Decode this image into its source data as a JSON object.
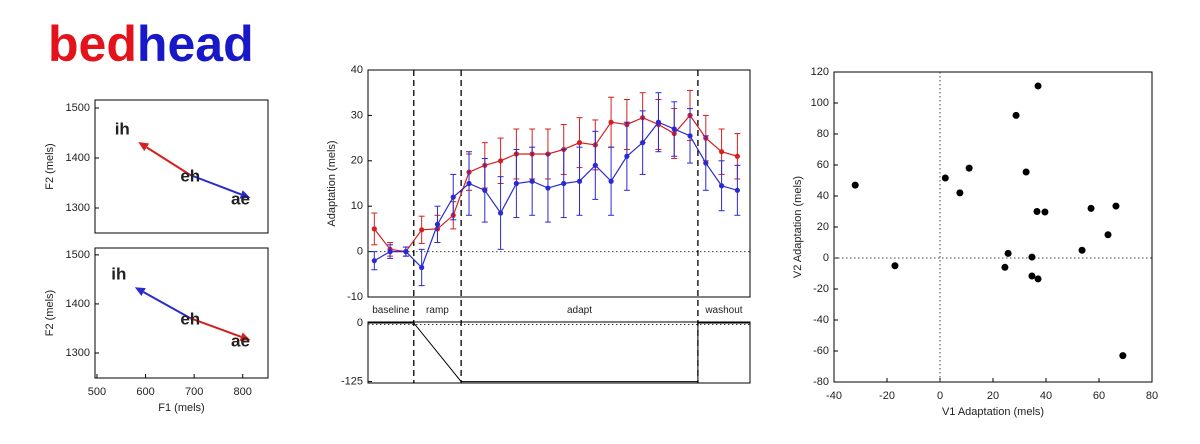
{
  "heading": {
    "parts": [
      {
        "text": "bed",
        "color": "#e3121b"
      },
      {
        "text": "head",
        "color": "#1818c8"
      }
    ]
  },
  "chart_data": [
    {
      "type": "vowel",
      "ylabel": "F2 (mels)",
      "labels": [
        "ih",
        "eh",
        "ae"
      ],
      "x": [
        585,
        692,
        816
      ],
      "y": [
        1432,
        1366,
        1320
      ],
      "arrows": [
        {
          "from": 1,
          "to": 0,
          "color": "#d42020"
        },
        {
          "from": 1,
          "to": 2,
          "color": "#2a2ad0"
        }
      ],
      "xlim": [
        496,
        852
      ],
      "ylim": [
        1250,
        1516
      ],
      "yticks": [
        1300,
        1400,
        1500
      ]
    },
    {
      "type": "vowel",
      "xlabel": "F1 (mels)",
      "ylabel": "F2 (mels)",
      "labels": [
        "ih",
        "eh",
        "ae"
      ],
      "x": [
        578,
        692,
        816
      ],
      "y": [
        1434,
        1371,
        1326
      ],
      "arrows": [
        {
          "from": 1,
          "to": 0,
          "color": "#2a2ad0"
        },
        {
          "from": 1,
          "to": 2,
          "color": "#d42020"
        }
      ],
      "xlim": [
        496,
        852
      ],
      "xticks": [
        500,
        600,
        700,
        800
      ],
      "ylim": [
        1249,
        1514
      ],
      "yticks": [
        1300,
        1400,
        1500
      ]
    },
    {
      "type": "errorline",
      "ylabel": "Adaptation (mels)",
      "x": [
        1,
        2,
        3,
        4,
        5,
        6,
        7,
        8,
        9,
        10,
        11,
        12,
        13,
        14,
        15,
        16,
        17,
        18,
        19,
        20,
        21,
        22,
        23,
        24
      ],
      "series": [
        {
          "color": "#d42020",
          "values": [
            5,
            0.5,
            0,
            4.8,
            5,
            8,
            17.5,
            19,
            20,
            21.5,
            21.5,
            21.5,
            22.5,
            24,
            23.5,
            28.5,
            28,
            29.5,
            28,
            26,
            30,
            25,
            22,
            21
          ],
          "errors": [
            3.5,
            1.5,
            1,
            3,
            3,
            3,
            4,
            5,
            5,
            5.5,
            5.5,
            5.5,
            5.5,
            5.5,
            5.5,
            5.5,
            5.5,
            5.5,
            5.5,
            5.5,
            5.5,
            5,
            5,
            5
          ]
        },
        {
          "color": "#2a2ad0",
          "values": [
            -2,
            0,
            0,
            -3.5,
            6,
            12,
            15,
            13.5,
            8.5,
            15,
            15.5,
            14,
            15,
            15.5,
            19,
            15.5,
            21,
            24,
            28.5,
            27,
            25.5,
            19.5,
            14.5,
            13.5
          ],
          "errors": [
            2,
            1.5,
            1,
            4,
            4,
            5,
            7,
            7,
            8,
            7.5,
            7.5,
            7.5,
            7.5,
            7.5,
            7.5,
            7.5,
            7.5,
            7,
            6.5,
            6,
            6,
            6,
            5.5,
            5.5
          ]
        }
      ],
      "xlim": [
        0.6,
        24.8
      ],
      "ylim": [
        -10,
        40
      ],
      "yticks": [
        -10,
        0,
        10,
        20,
        30,
        40
      ],
      "zero_line": true,
      "phases": [
        "baseline",
        "ramp",
        "adapt",
        "washout"
      ],
      "phase_boundaries": [
        3.5,
        6.5,
        21.5
      ],
      "perturbation": {
        "x": [
          0.6,
          3.5,
          6.5,
          21.5,
          21.5,
          24.8
        ],
        "values": [
          0,
          0,
          -125,
          -125,
          0,
          0
        ],
        "ylim": [
          -128,
          2
        ],
        "yticks": [
          0,
          -125
        ]
      }
    },
    {
      "type": "scatter",
      "xlabel": "V1 Adaptation (mels)",
      "ylabel": "V2 Adaptation (mels)",
      "xcolor": "#d42020",
      "ycolor": "#2a2ad0",
      "color": "#000000",
      "x": [
        -32,
        -17,
        2,
        7.5,
        11,
        28.7,
        37,
        32.5,
        25.7,
        24.5,
        34.7,
        34.7,
        37,
        36.6,
        39.6,
        57,
        53.6,
        63.4,
        66.4,
        69
      ],
      "y": [
        47,
        -5,
        51.6,
        42,
        58,
        92,
        111,
        55.5,
        3,
        -6,
        0.6,
        -11.6,
        -13.5,
        30,
        29.7,
        32,
        5,
        15,
        33.5,
        -63
      ],
      "xlim": [
        -40,
        80
      ],
      "xticks": [
        -40,
        -20,
        0,
        20,
        40,
        60,
        80
      ],
      "ylim": [
        -80,
        120
      ],
      "yticks": [
        -80,
        -60,
        -40,
        -20,
        0,
        20,
        40,
        60,
        80,
        100,
        120
      ],
      "zero_lines": true
    }
  ]
}
